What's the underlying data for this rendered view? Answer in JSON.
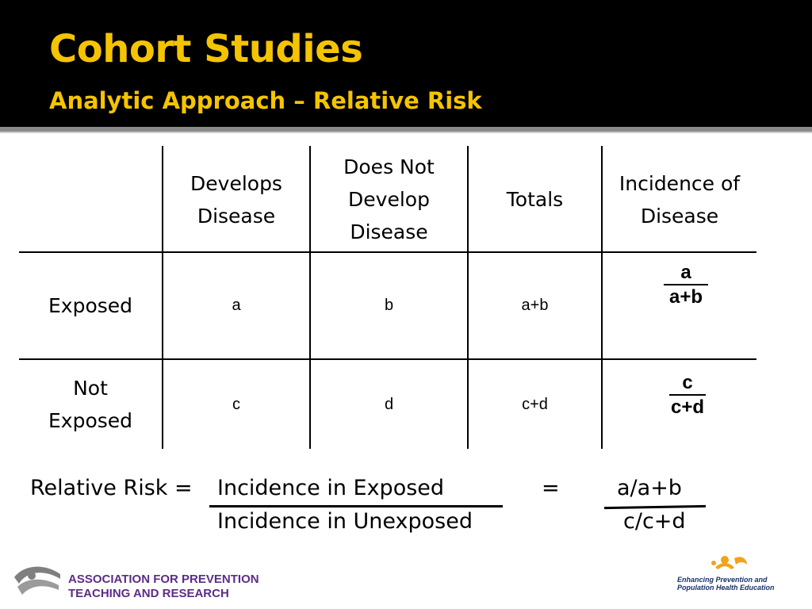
{
  "slide": {
    "title": "Cohort Studies",
    "subtitle": "Analytic Approach – Relative Risk"
  },
  "table": {
    "headers": [
      "",
      "Develops\nDisease",
      "Does Not\nDevelop\nDisease",
      "Totals",
      "Incidence of\nDisease"
    ],
    "rows": [
      {
        "label": "Exposed",
        "cells": [
          "a",
          "b",
          "a+b"
        ],
        "incidence": {
          "numerator": "a",
          "denominator": "a+b"
        }
      },
      {
        "label": "Not\nExposed",
        "cells": [
          "c",
          "d",
          "c+d"
        ],
        "incidence": {
          "numerator": "c",
          "denominator": "c+d"
        }
      }
    ]
  },
  "formula": {
    "label": "Relative Risk =",
    "numerator": "Incidence in Exposed",
    "denominator": "Incidence in Unexposed",
    "equals": "=",
    "result_numerator": "a/a+b",
    "result_denominator": "c/c+d"
  },
  "footer": {
    "left_org_line1": "ASSOCIATION FOR PREVENTION",
    "left_org_line2": "TEACHING AND RESEARCH",
    "right_logo_line1": "Enhancing Prevention and",
    "right_logo_line2": "Population Health Education"
  },
  "colors": {
    "title": "#f5c400",
    "header_bg": "#000000",
    "apt_purple": "#5b2d86",
    "eph_orange": "#f2a21c",
    "eph_navy": "#1a2f6b"
  }
}
